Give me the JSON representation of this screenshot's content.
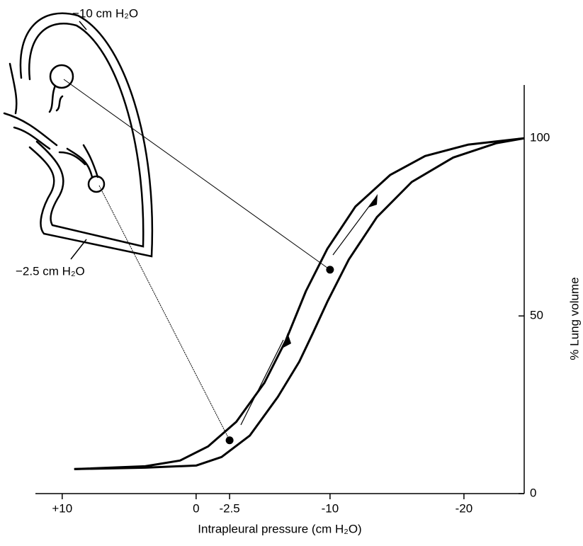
{
  "chart_data": {
    "type": "line",
    "x_label": "Intrapleural pressure (cm H₂O)",
    "y_label": "% Lung volume",
    "xlim": [
      12,
      -24.5
    ],
    "ylim": [
      0,
      115
    ],
    "xticks": [
      {
        "value": 10,
        "label": "+10"
      },
      0,
      -2.5,
      -10,
      -20
    ],
    "yticks": [
      0,
      50,
      100
    ],
    "annotations": [
      "−10 cm H₂O",
      "−2.5 cm H₂O"
    ],
    "series": [
      {
        "color": "#000000",
        "x": [
          9.1,
          3.8,
          0,
          -1.9,
          -4.0,
          -6.1,
          -7.7,
          -8.7,
          -9.8,
          -11.4,
          -13.5,
          -16.1,
          -19.2,
          -22.4,
          -24.5
        ],
        "values": [
          6.9,
          7.3,
          7.9,
          10.3,
          16.3,
          27.2,
          37.1,
          45.0,
          54.0,
          65.9,
          77.8,
          87.7,
          94.6,
          98.6,
          100
        ]
      },
      {
        "color": "#000000",
        "x": [
          9.1,
          3.8,
          1.2,
          -0.9,
          -3.0,
          -5.1,
          -6.7,
          -8.2,
          -9.8,
          -11.9,
          -14.5,
          -17.1,
          -20.3,
          -24.5
        ],
        "values": [
          6.9,
          7.7,
          9.3,
          13.3,
          20.2,
          31.2,
          43.1,
          57.0,
          68.9,
          80.8,
          89.7,
          95.0,
          98.2,
          100
        ]
      }
    ],
    "markers": {
      "color": "#000000",
      "x": [
        -2.5,
        -10
      ],
      "values": [
        15,
        63
      ]
    }
  }
}
